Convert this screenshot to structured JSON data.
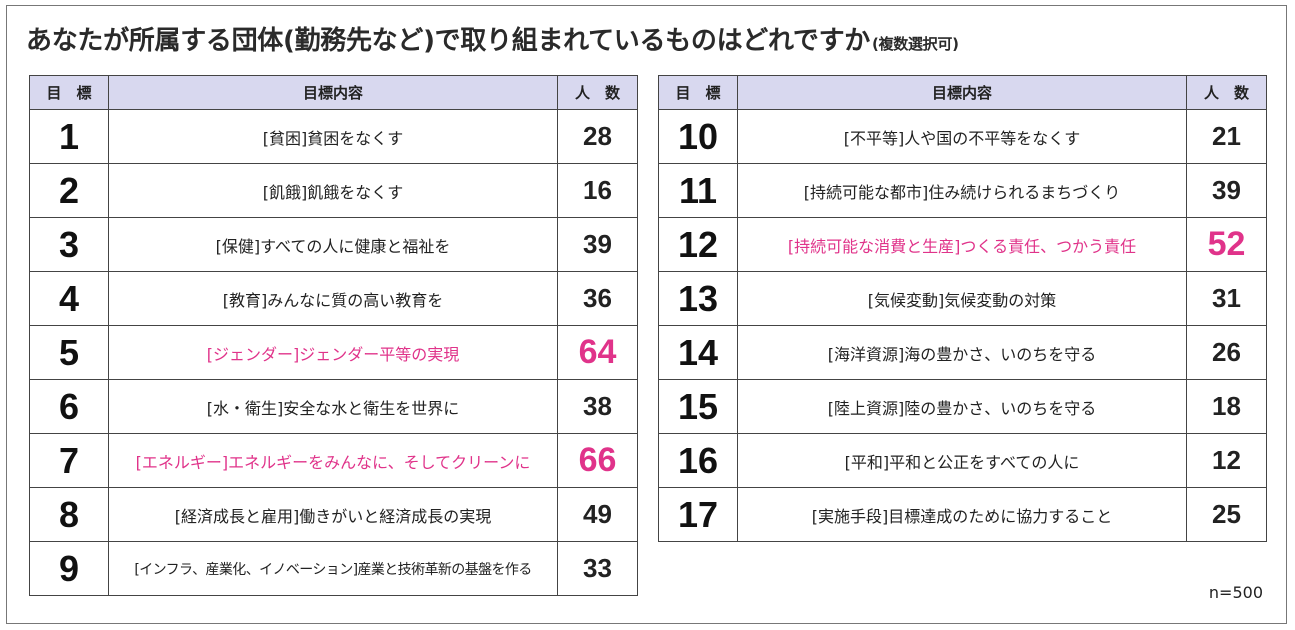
{
  "title": "あなたが所属する団体(勤務先など)で取り組まれているものはどれですか",
  "subtitle": "(複数選択可)",
  "headers": {
    "goal": "目　標",
    "content": "目標内容",
    "count": "人　数"
  },
  "accent_color": "#e0338a",
  "header_bg": "#d8d8ef",
  "n_label": "n=500",
  "rows": [
    {
      "goal": "1",
      "content": "[貧困]貧困をなくす",
      "count": "28",
      "highlight": false
    },
    {
      "goal": "2",
      "content": "[飢餓]飢餓をなくす",
      "count": "16",
      "highlight": false
    },
    {
      "goal": "3",
      "content": "[保健]すべての人に健康と福祉を",
      "count": "39",
      "highlight": false
    },
    {
      "goal": "4",
      "content": "[教育]みんなに質の高い教育を",
      "count": "36",
      "highlight": false
    },
    {
      "goal": "5",
      "content": "[ジェンダー]ジェンダー平等の実現",
      "count": "64",
      "highlight": true
    },
    {
      "goal": "6",
      "content": "[水・衛生]安全な水と衛生を世界に",
      "count": "38",
      "highlight": false
    },
    {
      "goal": "7",
      "content": "[エネルギー]エネルギーをみんなに、そしてクリーンに",
      "count": "66",
      "highlight": true
    },
    {
      "goal": "8",
      "content": "[経済成長と雇用]働きがいと経済成長の実現",
      "count": "49",
      "highlight": false
    },
    {
      "goal": "9",
      "content": "[インフラ、産業化、イノベーション]産業と技術革新の基盤を作る",
      "count": "33",
      "highlight": false
    },
    {
      "goal": "10",
      "content": "[不平等]人や国の不平等をなくす",
      "count": "21",
      "highlight": false
    },
    {
      "goal": "11",
      "content": "[持続可能な都市]住み続けられるまちづくり",
      "count": "39",
      "highlight": false
    },
    {
      "goal": "12",
      "content": "[持続可能な消費と生産]つくる責任、つかう責任",
      "count": "52",
      "highlight": true
    },
    {
      "goal": "13",
      "content": "[気候変動]気候変動の対策",
      "count": "31",
      "highlight": false
    },
    {
      "goal": "14",
      "content": "[海洋資源]海の豊かさ、いのちを守る",
      "count": "26",
      "highlight": false
    },
    {
      "goal": "15",
      "content": "[陸上資源]陸の豊かさ、いのちを守る",
      "count": "18",
      "highlight": false
    },
    {
      "goal": "16",
      "content": "[平和]平和と公正をすべての人に",
      "count": "12",
      "highlight": false
    },
    {
      "goal": "17",
      "content": "[実施手段]目標達成のために協力すること",
      "count": "25",
      "highlight": false
    }
  ]
}
